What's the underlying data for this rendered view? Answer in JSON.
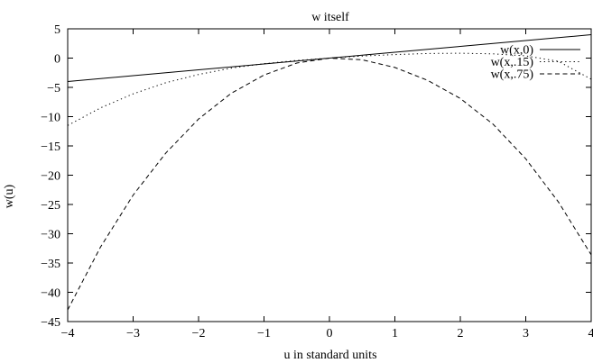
{
  "chart_data": {
    "type": "line",
    "title": "w itself",
    "xlabel": "u in standard units",
    "ylabel": "w(u)",
    "xlim": [
      -4,
      4
    ],
    "ylim": [
      -45,
      5
    ],
    "x_ticks": [
      -4,
      -3,
      -2,
      -1,
      0,
      1,
      2,
      3,
      4
    ],
    "y_ticks": [
      5,
      0,
      -5,
      -10,
      -15,
      -20,
      -25,
      -30,
      -35,
      -40,
      -45
    ],
    "x_tick_labels": [
      "−4",
      "−3",
      "−2",
      "−1",
      "0",
      "1",
      "2",
      "3",
      "4"
    ],
    "y_tick_labels": [
      "5",
      "0",
      "−5",
      "−10",
      "−15",
      "−20",
      "−25",
      "−30",
      "−35",
      "−40",
      "−45"
    ],
    "grid": false,
    "legend_position": "top-right",
    "x": [
      -4,
      -3.5,
      -3,
      -2.5,
      -2,
      -1.5,
      -1,
      -0.5,
      0,
      0.5,
      1,
      1.5,
      2,
      2.5,
      3,
      3.5,
      4
    ],
    "series": [
      {
        "name": "w(x,0)",
        "style": "solid",
        "values": [
          -4,
          -3.5,
          -3,
          -2.5,
          -2,
          -1.5,
          -1,
          -0.5,
          0,
          0.5,
          1,
          1.5,
          2,
          2.5,
          3,
          3.5,
          4
        ]
      },
      {
        "name": "w(x,.15)",
        "style": "dotted",
        "values": [
          -11.5,
          -8.5,
          -6.1,
          -4.2,
          -2.8,
          -1.7,
          -0.95,
          -0.4,
          0,
          0.35,
          0.6,
          0.78,
          0.83,
          0.72,
          0.38,
          -0.55,
          -3.6
        ]
      },
      {
        "name": "w(x,.75)",
        "style": "dashed",
        "values": [
          -43,
          -32.3,
          -23.4,
          -16.2,
          -10.4,
          -6.0,
          -2.9,
          -0.85,
          0,
          -0.3,
          -1.6,
          -3.8,
          -6.9,
          -11.3,
          -17.2,
          -24.6,
          -33.6
        ]
      }
    ]
  }
}
